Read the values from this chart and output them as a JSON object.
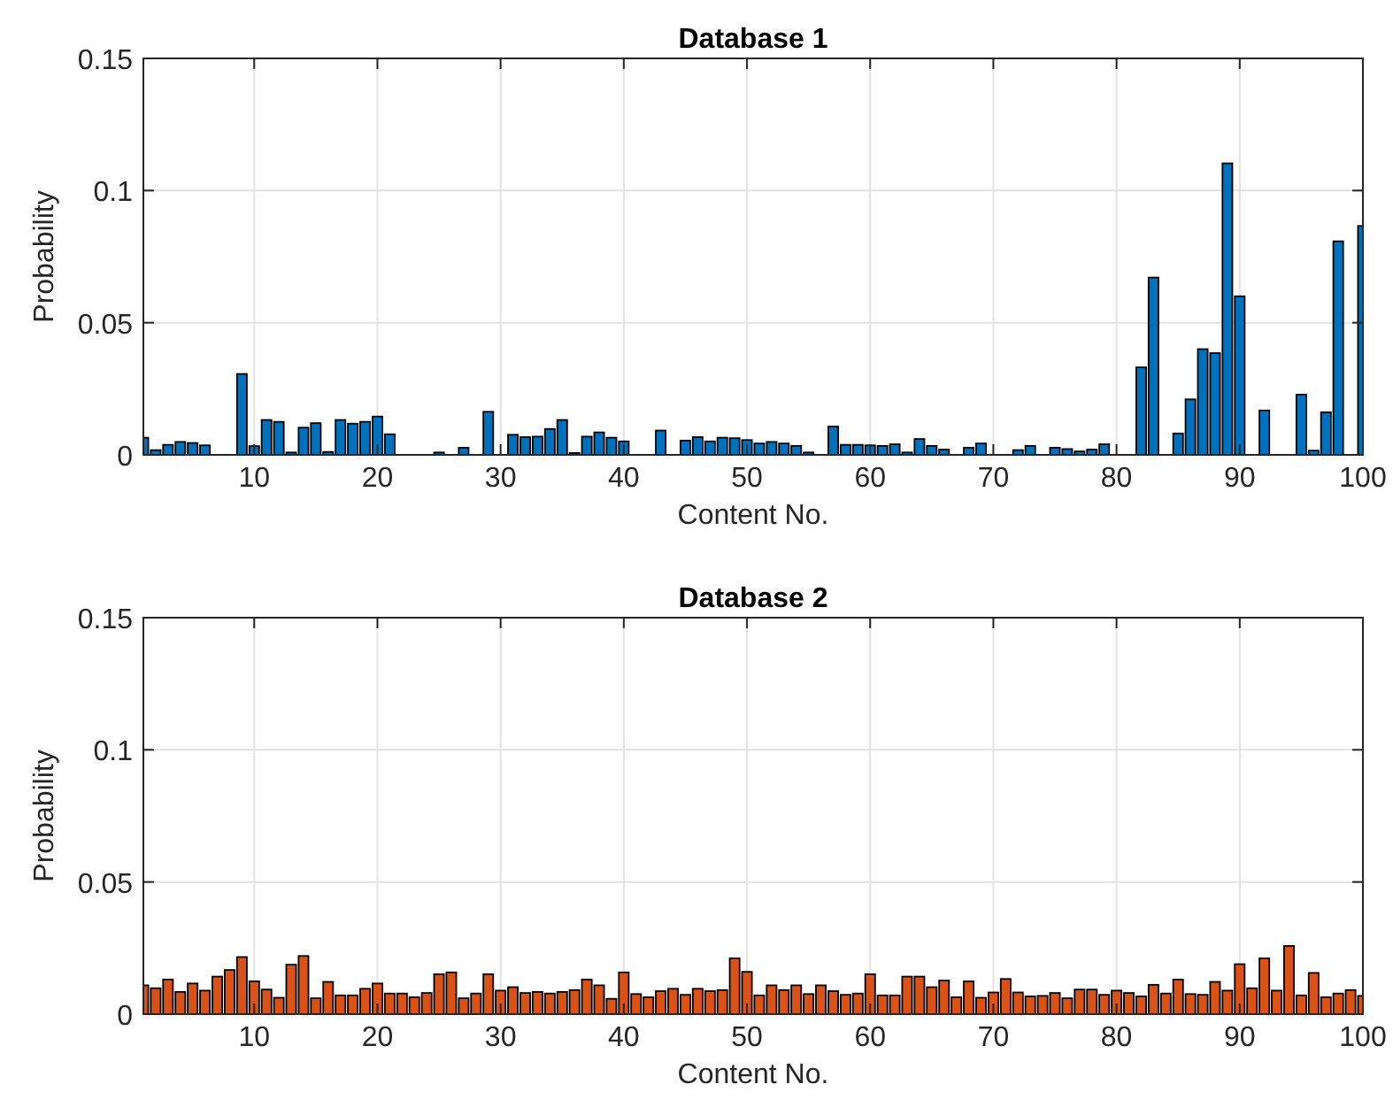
{
  "chart_data": [
    {
      "type": "bar",
      "title": "Database 1",
      "xlabel": "Content No.",
      "ylabel": "Probability",
      "x": [
        1,
        2,
        3,
        4,
        5,
        6,
        7,
        8,
        9,
        10,
        11,
        12,
        13,
        14,
        15,
        16,
        17,
        18,
        19,
        20,
        21,
        22,
        23,
        24,
        25,
        26,
        27,
        28,
        29,
        30,
        31,
        32,
        33,
        34,
        35,
        36,
        37,
        38,
        39,
        40,
        41,
        42,
        43,
        44,
        45,
        46,
        47,
        48,
        49,
        50,
        51,
        52,
        53,
        54,
        55,
        56,
        57,
        58,
        59,
        60,
        61,
        62,
        63,
        64,
        65,
        66,
        67,
        68,
        69,
        70,
        71,
        72,
        73,
        74,
        75,
        76,
        77,
        78,
        79,
        80,
        81,
        82,
        83,
        84,
        85,
        86,
        87,
        88,
        89,
        90,
        91,
        92,
        93,
        94,
        95,
        96,
        97,
        98,
        99,
        100
      ],
      "values": [
        0.0065,
        0.0018,
        0.0038,
        0.0049,
        0.0045,
        0.0036,
        0,
        0,
        0.0306,
        0.0033,
        0.0132,
        0.0125,
        0.0009,
        0.0103,
        0.012,
        0.0011,
        0.0132,
        0.0118,
        0.0125,
        0.0145,
        0.0078,
        0,
        0,
        0,
        0.0009,
        0,
        0.0027,
        0,
        0.0163,
        0,
        0.0076,
        0.0067,
        0.0069,
        0.0098,
        0.0132,
        0.0007,
        0.0069,
        0.0085,
        0.0065,
        0.0051,
        0,
        0,
        0.0092,
        0,
        0.0054,
        0.0067,
        0.0051,
        0.0065,
        0.0063,
        0.0056,
        0.0043,
        0.0049,
        0.0043,
        0.0034,
        0.0009,
        0,
        0.0107,
        0.0038,
        0.0038,
        0.0036,
        0.0034,
        0.004,
        0.0009,
        0.006,
        0.0034,
        0.002,
        0,
        0.0027,
        0.0043,
        0,
        0,
        0.0018,
        0.0034,
        0,
        0.0027,
        0.0022,
        0.0013,
        0.002,
        0.004,
        0,
        0,
        0.0331,
        0.0671,
        0,
        0.0081,
        0.021,
        0.04,
        0.0385,
        0.1103,
        0.06,
        0,
        0.0168,
        0,
        0,
        0.0228,
        0.0016,
        0.0161,
        0.0808,
        0,
        0.0866
      ],
      "color": "#0072bd",
      "xlim": [
        1,
        100
      ],
      "xticks": [
        10,
        20,
        30,
        40,
        50,
        60,
        70,
        80,
        90,
        100
      ],
      "ylim": [
        0,
        0.15
      ],
      "yticks": [
        0,
        0.05,
        0.1,
        0.15
      ],
      "grid": true
    },
    {
      "type": "bar",
      "title": "Database 2",
      "xlabel": "Content No.",
      "ylabel": "Probability",
      "x": [
        1,
        2,
        3,
        4,
        5,
        6,
        7,
        8,
        9,
        10,
        11,
        12,
        13,
        14,
        15,
        16,
        17,
        18,
        19,
        20,
        21,
        22,
        23,
        24,
        25,
        26,
        27,
        28,
        29,
        30,
        31,
        32,
        33,
        34,
        35,
        36,
        37,
        38,
        39,
        40,
        41,
        42,
        43,
        44,
        45,
        46,
        47,
        48,
        49,
        50,
        51,
        52,
        53,
        54,
        55,
        56,
        57,
        58,
        59,
        60,
        61,
        62,
        63,
        64,
        65,
        66,
        67,
        68,
        69,
        70,
        71,
        72,
        73,
        74,
        75,
        76,
        77,
        78,
        79,
        80,
        81,
        82,
        83,
        84,
        85,
        86,
        87,
        88,
        89,
        90,
        91,
        92,
        93,
        94,
        95,
        96,
        97,
        98,
        99,
        100
      ],
      "values": [
        0.0109,
        0.0098,
        0.0131,
        0.0084,
        0.0116,
        0.0089,
        0.0142,
        0.0167,
        0.0216,
        0.0124,
        0.0093,
        0.0062,
        0.0187,
        0.022,
        0.006,
        0.0122,
        0.0071,
        0.0071,
        0.0096,
        0.0116,
        0.0078,
        0.0078,
        0.0064,
        0.008,
        0.0151,
        0.0158,
        0.006,
        0.0078,
        0.0151,
        0.0089,
        0.0102,
        0.008,
        0.0084,
        0.0078,
        0.0084,
        0.0091,
        0.0131,
        0.0109,
        0.0058,
        0.0158,
        0.0076,
        0.0064,
        0.0087,
        0.0096,
        0.0073,
        0.0096,
        0.0087,
        0.0091,
        0.0211,
        0.016,
        0.0071,
        0.0109,
        0.0091,
        0.0109,
        0.0076,
        0.0109,
        0.0087,
        0.0073,
        0.0078,
        0.0151,
        0.0071,
        0.0071,
        0.0142,
        0.0142,
        0.0102,
        0.0127,
        0.0064,
        0.0124,
        0.0062,
        0.0082,
        0.0133,
        0.0082,
        0.0067,
        0.0069,
        0.008,
        0.006,
        0.0093,
        0.0093,
        0.0073,
        0.0089,
        0.008,
        0.0067,
        0.0111,
        0.0078,
        0.0131,
        0.0076,
        0.0073,
        0.0122,
        0.0089,
        0.0189,
        0.0098,
        0.0211,
        0.0089,
        0.0258,
        0.0071,
        0.0156,
        0.0064,
        0.0078,
        0.0091,
        0.0069
      ],
      "color": "#d95319",
      "xlim": [
        1,
        100
      ],
      "xticks": [
        10,
        20,
        30,
        40,
        50,
        60,
        70,
        80,
        90,
        100
      ],
      "ylim": [
        0,
        0.15
      ],
      "yticks": [
        0,
        0.05,
        0.1,
        0.15
      ],
      "grid": true
    }
  ]
}
